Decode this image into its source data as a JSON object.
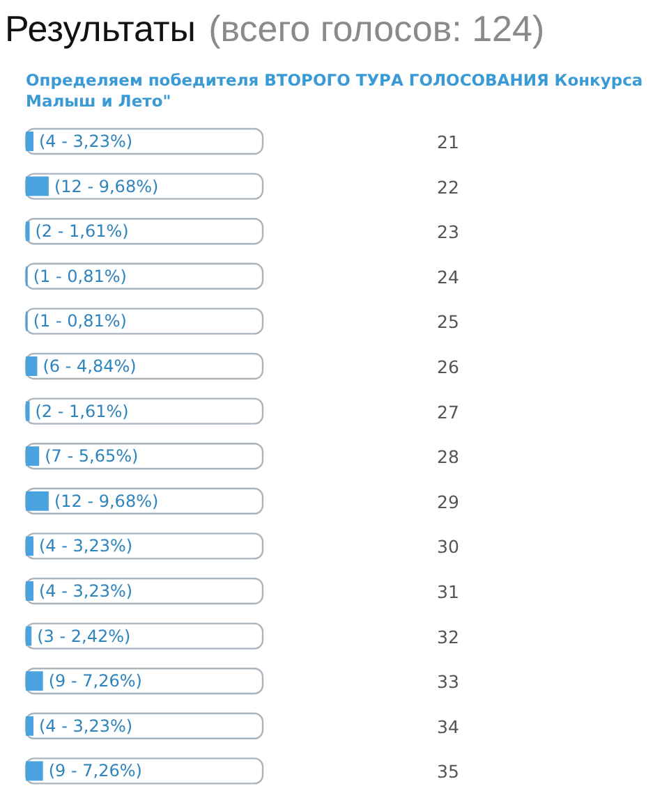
{
  "chart_data": {
    "type": "bar",
    "orientation": "horizontal",
    "title": "Результаты (всего голосов: 124)",
    "subtitle": "Определяем победителя ВТОРОГО ТУРА ГОЛОСОВАНИЯ Конкурса Малыш и Лето\"",
    "categories": [
      "21",
      "22",
      "23",
      "24",
      "25",
      "26",
      "27",
      "28",
      "29",
      "30",
      "31",
      "32",
      "33",
      "34",
      "35"
    ],
    "values": [
      4,
      12,
      2,
      1,
      1,
      6,
      2,
      7,
      12,
      4,
      4,
      3,
      9,
      4,
      9
    ],
    "value_labels": [
      "(4 - 3,23%)",
      "(12 - 9,68%)",
      "(2 - 1,61%)",
      "(1 - 0,81%)",
      "(1 - 0,81%)",
      "(6 - 4,84%)",
      "(2 - 1,61%)",
      "(7 - 5,65%)",
      "(12 - 9,68%)",
      "(4 - 3,23%)",
      "(4 - 3,23%)",
      "(3 - 2,42%)",
      "(9 - 7,26%)",
      "(4 - 3,23%)",
      "(9 - 7,26%)"
    ],
    "color": "#4aa3df",
    "xlim": [
      0,
      124
    ]
  }
}
